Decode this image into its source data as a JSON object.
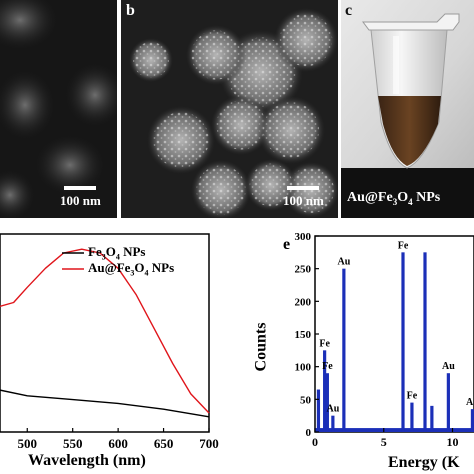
{
  "panels": {
    "a": {
      "scale_bar": "100 nm"
    },
    "b": {
      "letter": "b",
      "scale_bar": "100 nm"
    },
    "c": {
      "letter": "c",
      "caption_parts": [
        "Au@Fe",
        "3",
        "O",
        "4",
        " NPs"
      ]
    },
    "d": {
      "legend": [
        {
          "name_parts": [
            "Fe",
            "3",
            "O",
            "4",
            " NPs"
          ],
          "color": "#000000"
        },
        {
          "name_parts": [
            "Au@Fe",
            "3",
            "O",
            "4",
            " NPs"
          ],
          "color": "#e0151b"
        }
      ]
    },
    "e": {
      "letter": "e",
      "ylabel": "Counts",
      "xlabel": "Energy (K"
    }
  },
  "chart_data": [
    {
      "type": "line",
      "panel": "d",
      "xlabel": "Wavelength (nm)",
      "ylabel": "",
      "xlim": [
        470,
        700
      ],
      "x_ticks": [
        "500",
        "550",
        "600",
        "650",
        "700"
      ],
      "series": [
        {
          "name": "Fe3O4 NPs",
          "color": "#000000",
          "x": [
            470,
            500,
            550,
            600,
            650,
            700
          ],
          "y": [
            0.11,
            0.095,
            0.085,
            0.075,
            0.06,
            0.04
          ]
        },
        {
          "name": "Au@Fe3O4 NPs",
          "color": "#e0151b",
          "x": [
            470,
            485,
            500,
            520,
            540,
            560,
            580,
            600,
            620,
            640,
            660,
            680,
            700
          ],
          "y": [
            0.33,
            0.34,
            0.38,
            0.43,
            0.47,
            0.48,
            0.47,
            0.43,
            0.36,
            0.27,
            0.18,
            0.1,
            0.05
          ]
        }
      ]
    },
    {
      "type": "bar",
      "panel": "e",
      "xlabel": "Energy (K",
      "ylabel": "Counts",
      "xlim": [
        0,
        12
      ],
      "ylim": [
        0,
        300
      ],
      "x_ticks": [
        "0",
        "5",
        "10"
      ],
      "y_ticks": [
        "0",
        "50",
        "100",
        "150",
        "200",
        "250",
        "300"
      ],
      "peaks": [
        {
          "x": 0.25,
          "y": 65
        },
        {
          "x": 0.7,
          "y": 125,
          "label": "Fe"
        },
        {
          "x": 0.9,
          "y": 90,
          "label": "Fe"
        },
        {
          "x": 1.3,
          "y": 25,
          "label": "Au"
        },
        {
          "x": 2.1,
          "y": 250,
          "label": "Au"
        },
        {
          "x": 6.4,
          "y": 275,
          "label": "Fe"
        },
        {
          "x": 7.05,
          "y": 45,
          "label": "Fe"
        },
        {
          "x": 8.0,
          "y": 275
        },
        {
          "x": 8.5,
          "y": 40
        },
        {
          "x": 9.7,
          "y": 90,
          "label": "Au"
        },
        {
          "x": 11.45,
          "y": 35,
          "label": "Au"
        }
      ]
    }
  ]
}
